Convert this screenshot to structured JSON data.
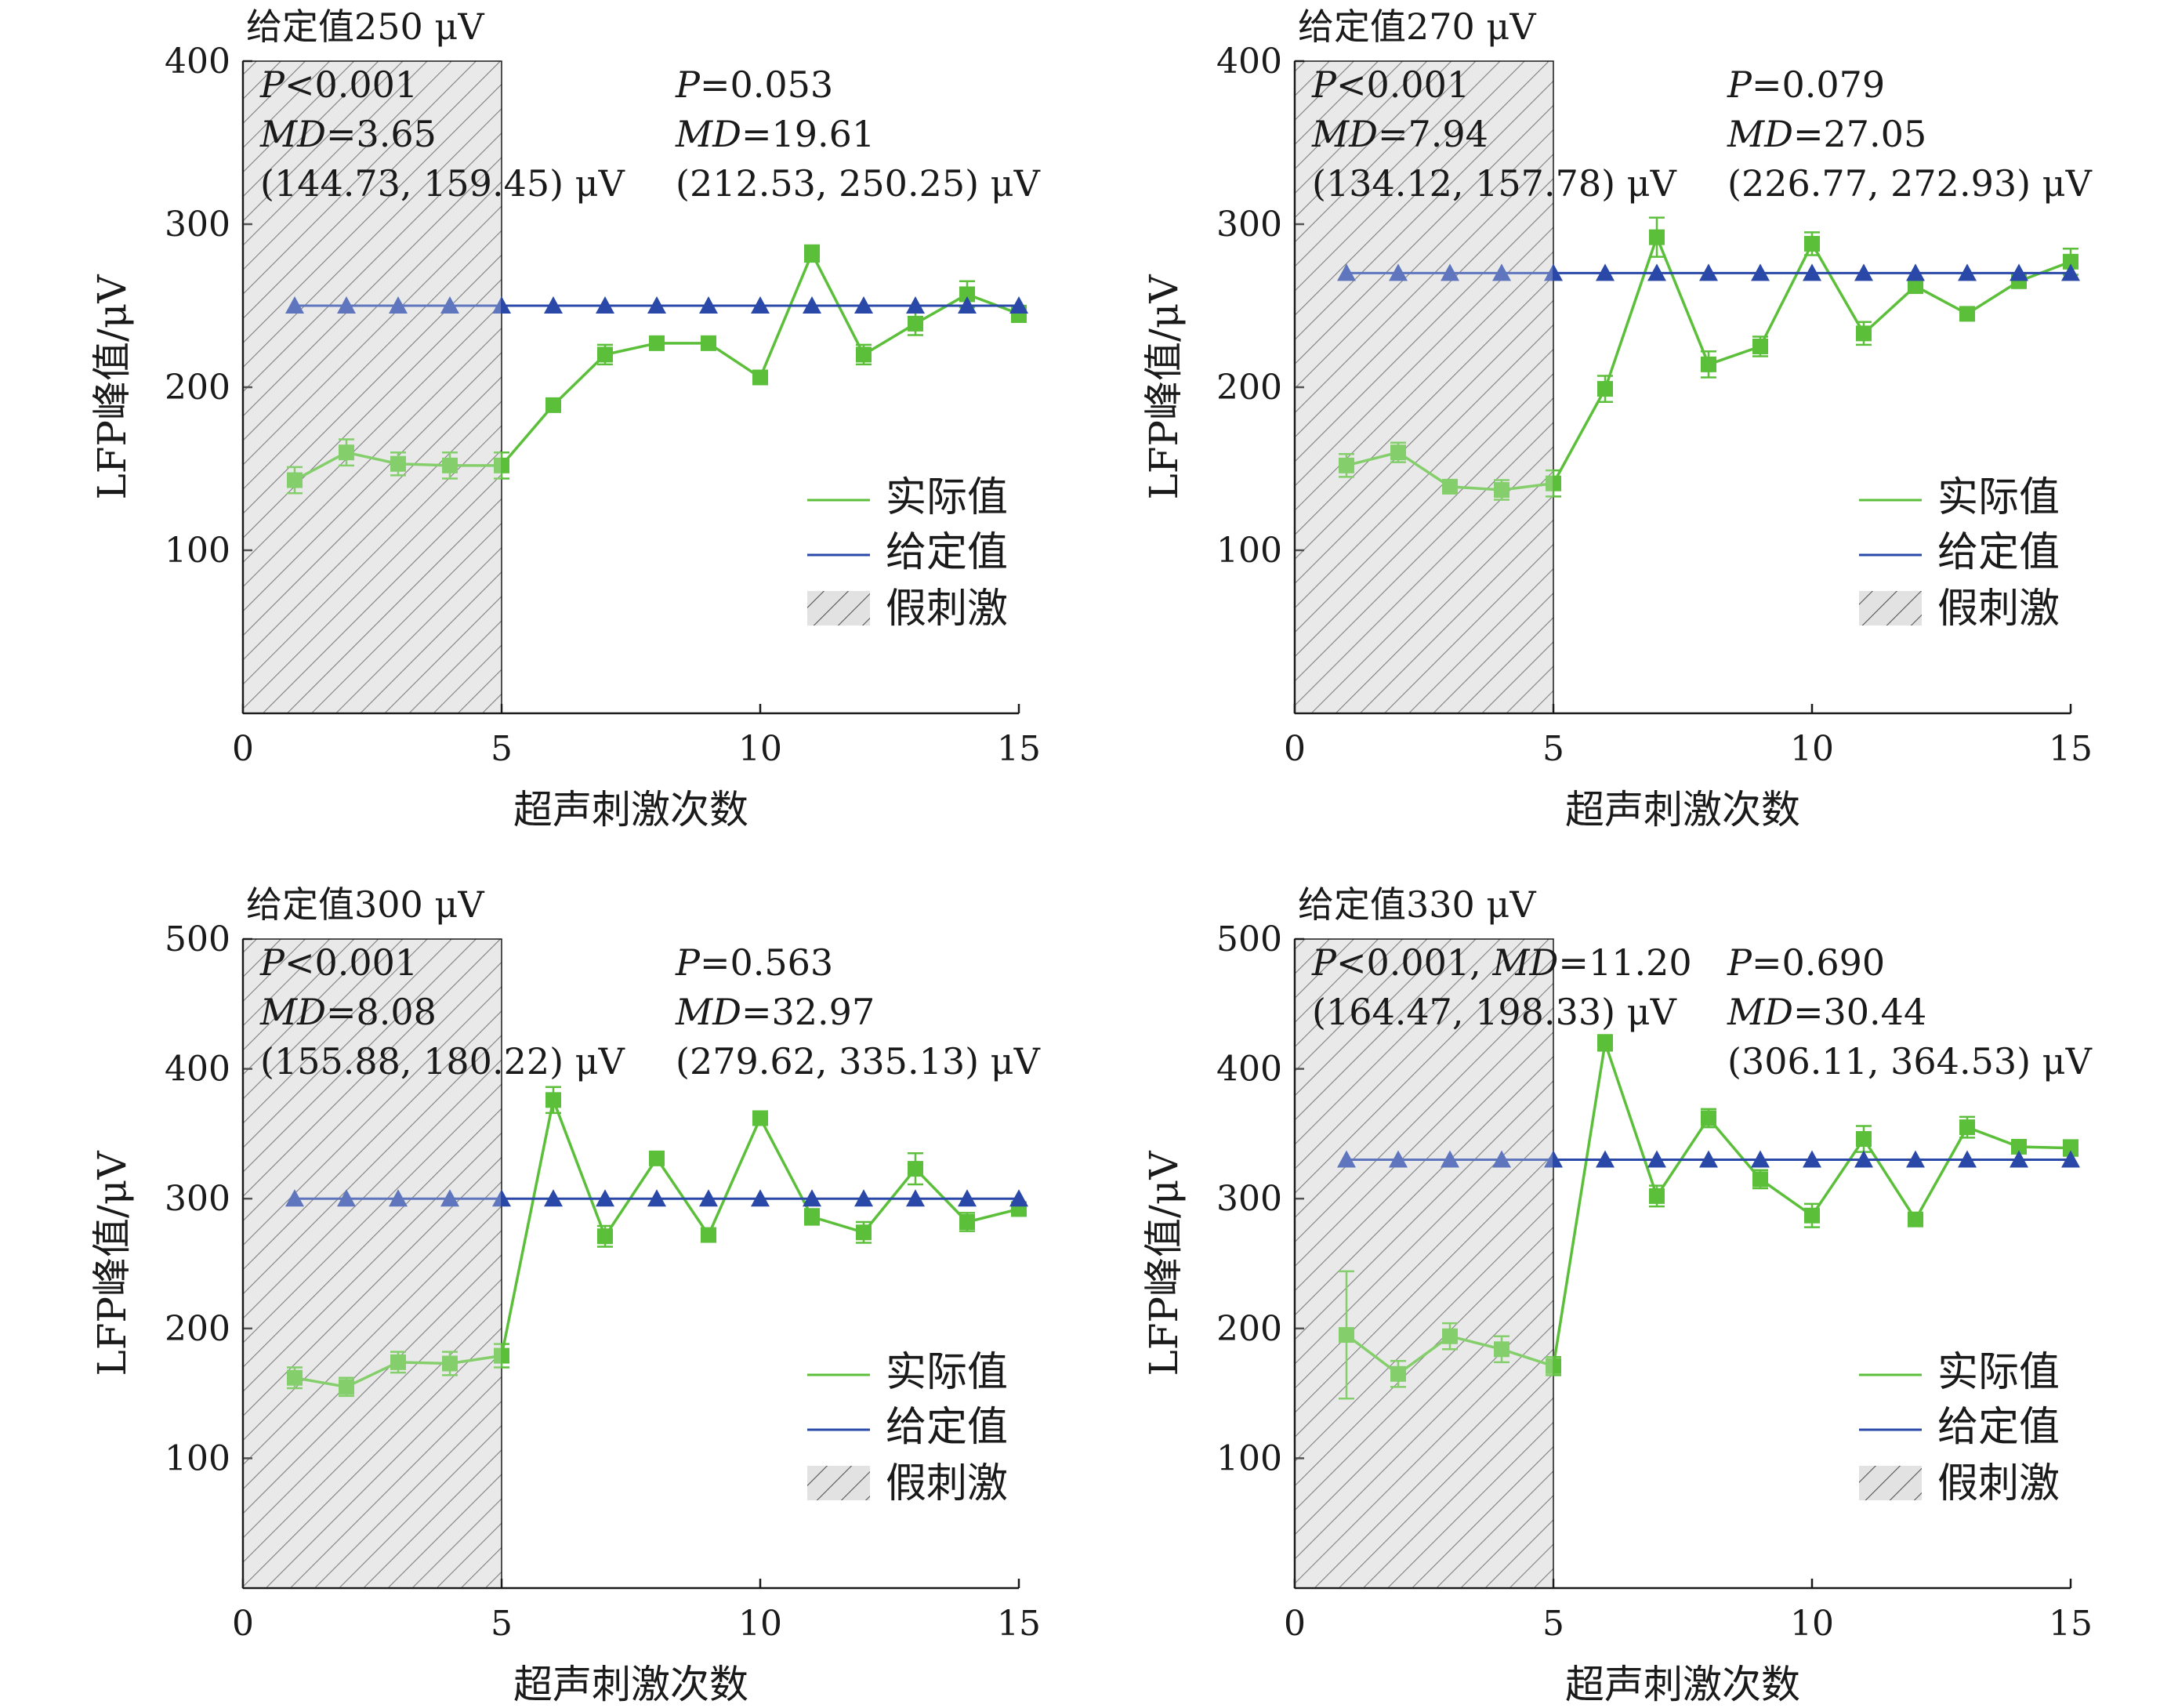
{
  "colors": {
    "actual": "#5bbf3a",
    "setpoint": "#2a48a8",
    "sham_fill": "#e2e2e2",
    "hatch": "#555555",
    "axis": "#1a1a1a"
  },
  "chart_data": [
    {
      "type": "line",
      "title": "给定值250 μV",
      "xlabel": "超声刺激次数",
      "ylabel": "LFP峰值/μV",
      "xlim": [
        0,
        15
      ],
      "ylim": [
        0,
        400
      ],
      "xticks": [
        0,
        5,
        10,
        15
      ],
      "yticks": [
        100,
        200,
        300,
        400
      ],
      "shaded_region": {
        "x_start": 0,
        "x_end": 5,
        "label": "假刺激"
      },
      "legend": {
        "position": "lower-right",
        "entries": [
          "实际值",
          "给定值",
          "假刺激"
        ]
      },
      "annotations": [
        {
          "lines": [
            {
              "italic": "P",
              "rest": "<0.001"
            },
            {
              "italic": "MD",
              "rest": "=3.65"
            },
            {
              "italic": "",
              "rest": "(144.73, 159.45) μV"
            }
          ],
          "region": "sham"
        },
        {
          "lines": [
            {
              "italic": "P",
              "rest": "=0.053"
            },
            {
              "italic": "MD",
              "rest": "=19.61"
            },
            {
              "italic": "",
              "rest": "(212.53, 250.25) μV"
            }
          ],
          "region": "stim"
        }
      ],
      "series": [
        {
          "name": "实际值",
          "x": [
            1,
            2,
            3,
            4,
            5,
            6,
            7,
            8,
            9,
            10,
            11,
            12,
            13,
            14,
            15
          ],
          "y": [
            143,
            160,
            153,
            152,
            152,
            189,
            220,
            227,
            227,
            206,
            282,
            220,
            239,
            257,
            245
          ],
          "err": [
            8,
            8,
            7,
            8,
            8,
            4,
            6,
            4,
            4,
            4,
            5,
            6,
            7,
            8,
            5
          ]
        },
        {
          "name": "给定值",
          "x": [
            1,
            2,
            3,
            4,
            5,
            6,
            7,
            8,
            9,
            10,
            11,
            12,
            13,
            14,
            15
          ],
          "y": [
            250,
            250,
            250,
            250,
            250,
            250,
            250,
            250,
            250,
            250,
            250,
            250,
            250,
            250,
            250
          ]
        }
      ]
    },
    {
      "type": "line",
      "title": "给定值270 μV",
      "xlabel": "超声刺激次数",
      "ylabel": "LFP峰值/μV",
      "xlim": [
        0,
        15
      ],
      "ylim": [
        0,
        400
      ],
      "xticks": [
        0,
        5,
        10,
        15
      ],
      "yticks": [
        100,
        200,
        300,
        400
      ],
      "shaded_region": {
        "x_start": 0,
        "x_end": 5,
        "label": "假刺激"
      },
      "legend": {
        "position": "lower-right",
        "entries": [
          "实际值",
          "给定值",
          "假刺激"
        ]
      },
      "annotations": [
        {
          "lines": [
            {
              "italic": "P",
              "rest": "<0.001"
            },
            {
              "italic": "MD",
              "rest": "=7.94"
            },
            {
              "italic": "",
              "rest": "(134.12, 157.78) μV"
            }
          ],
          "region": "sham"
        },
        {
          "lines": [
            {
              "italic": "P",
              "rest": "=0.079"
            },
            {
              "italic": "MD",
              "rest": "=27.05"
            },
            {
              "italic": "",
              "rest": "(226.77, 272.93) μV"
            }
          ],
          "region": "stim"
        }
      ],
      "series": [
        {
          "name": "实际值",
          "x": [
            1,
            2,
            3,
            4,
            5,
            6,
            7,
            8,
            9,
            10,
            11,
            12,
            13,
            14,
            15
          ],
          "y": [
            152,
            160,
            139,
            137,
            141,
            199,
            292,
            214,
            225,
            288,
            233,
            262,
            245,
            265,
            277
          ],
          "err": [
            7,
            6,
            3,
            6,
            8,
            8,
            12,
            8,
            6,
            7,
            7,
            4,
            4,
            4,
            8
          ]
        },
        {
          "name": "给定值",
          "x": [
            1,
            2,
            3,
            4,
            5,
            6,
            7,
            8,
            9,
            10,
            11,
            12,
            13,
            14,
            15
          ],
          "y": [
            270,
            270,
            270,
            270,
            270,
            270,
            270,
            270,
            270,
            270,
            270,
            270,
            270,
            270,
            270
          ]
        }
      ]
    },
    {
      "type": "line",
      "title": "给定值300 μV",
      "xlabel": "超声刺激次数",
      "ylabel": "LFP峰值/μV",
      "xlim": [
        0,
        15
      ],
      "ylim": [
        0,
        500
      ],
      "xticks": [
        0,
        5,
        10,
        15
      ],
      "yticks": [
        100,
        200,
        300,
        400,
        500
      ],
      "shaded_region": {
        "x_start": 0,
        "x_end": 5,
        "label": "假刺激"
      },
      "legend": {
        "position": "lower-right",
        "entries": [
          "实际值",
          "给定值",
          "假刺激"
        ]
      },
      "annotations": [
        {
          "lines": [
            {
              "italic": "P",
              "rest": "<0.001"
            },
            {
              "italic": "MD",
              "rest": "=8.08"
            },
            {
              "italic": "",
              "rest": "(155.88, 180.22) μV"
            }
          ],
          "region": "sham"
        },
        {
          "lines": [
            {
              "italic": "P",
              "rest": "=0.563"
            },
            {
              "italic": "MD",
              "rest": "=32.97"
            },
            {
              "italic": "",
              "rest": "(279.62, 335.13) μV"
            }
          ],
          "region": "stim"
        }
      ],
      "series": [
        {
          "name": "实际值",
          "x": [
            1,
            2,
            3,
            4,
            5,
            6,
            7,
            8,
            9,
            10,
            11,
            12,
            13,
            14,
            15
          ],
          "y": [
            162,
            155,
            174,
            173,
            179,
            376,
            271,
            331,
            272,
            362,
            286,
            274,
            323,
            282,
            292
          ],
          "err": [
            8,
            7,
            8,
            9,
            9,
            10,
            8,
            5,
            5,
            5,
            6,
            8,
            12,
            7,
            5
          ]
        },
        {
          "name": "给定值",
          "x": [
            1,
            2,
            3,
            4,
            5,
            6,
            7,
            8,
            9,
            10,
            11,
            12,
            13,
            14,
            15
          ],
          "y": [
            300,
            300,
            300,
            300,
            300,
            300,
            300,
            300,
            300,
            300,
            300,
            300,
            300,
            300,
            300
          ]
        }
      ]
    },
    {
      "type": "line",
      "title": "给定值330 μV",
      "xlabel": "超声刺激次数",
      "ylabel": "LFP峰值/μV",
      "xlim": [
        0,
        15
      ],
      "ylim": [
        0,
        500
      ],
      "xticks": [
        0,
        5,
        10,
        15
      ],
      "yticks": [
        100,
        200,
        300,
        400,
        500
      ],
      "shaded_region": {
        "x_start": 0,
        "x_end": 5,
        "label": "假刺激"
      },
      "legend": {
        "position": "lower-right",
        "entries": [
          "实际值",
          "给定值",
          "假刺激"
        ]
      },
      "annotations": [
        {
          "lines": [
            {
              "italic": "P",
              "rest": "<0.001, ",
              "italic2": "MD",
              "rest2": "=11.20"
            },
            {
              "italic": "",
              "rest": "(164.47, 198.33) μV"
            }
          ],
          "region": "sham"
        },
        {
          "lines": [
            {
              "italic": "P",
              "rest": "=0.690"
            },
            {
              "italic": "MD",
              "rest": "=30.44"
            },
            {
              "italic": "",
              "rest": "(306.11, 364.53) μV"
            }
          ],
          "region": "stim"
        }
      ],
      "series": [
        {
          "name": "实际值",
          "x": [
            1,
            2,
            3,
            4,
            5,
            6,
            7,
            8,
            9,
            10,
            11,
            12,
            13,
            14,
            15
          ],
          "y": [
            195,
            165,
            194,
            184,
            171,
            420,
            302,
            362,
            315,
            287,
            346,
            284,
            355,
            340,
            339
          ],
          "err": [
            49,
            10,
            10,
            10,
            7,
            6,
            8,
            7,
            7,
            9,
            10,
            5,
            8,
            4,
            6
          ]
        },
        {
          "name": "给定值",
          "x": [
            1,
            2,
            3,
            4,
            5,
            6,
            7,
            8,
            9,
            10,
            11,
            12,
            13,
            14,
            15
          ],
          "y": [
            330,
            330,
            330,
            330,
            330,
            330,
            330,
            330,
            330,
            330,
            330,
            330,
            330,
            330,
            330
          ]
        }
      ]
    }
  ]
}
